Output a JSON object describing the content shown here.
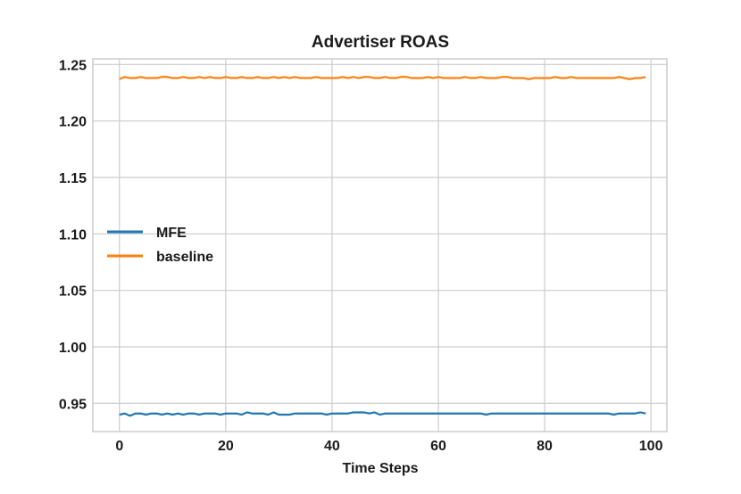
{
  "chart_data": {
    "type": "line",
    "title": "Advertiser ROAS",
    "xlabel": "Time Steps",
    "ylabel": "",
    "xlim": [
      -5,
      103
    ],
    "ylim": [
      0.925,
      1.255
    ],
    "xticks": [
      0,
      20,
      40,
      60,
      80,
      100
    ],
    "xtick_labels": [
      "0",
      "20",
      "40",
      "60",
      "80",
      "100"
    ],
    "yticks": [
      0.95,
      1.0,
      1.05,
      1.1,
      1.15,
      1.2,
      1.25
    ],
    "ytick_labels": [
      "0.95",
      "1.00",
      "1.05",
      "1.10",
      "1.15",
      "1.20",
      "1.25"
    ],
    "grid": true,
    "legend_position": "center-left",
    "x_start": 0,
    "series": [
      {
        "name": "MFE",
        "color": "#1f77b4",
        "values": [
          0.94,
          0.941,
          0.939,
          0.941,
          0.941,
          0.94,
          0.941,
          0.941,
          0.94,
          0.941,
          0.94,
          0.941,
          0.94,
          0.941,
          0.941,
          0.94,
          0.941,
          0.941,
          0.941,
          0.94,
          0.941,
          0.941,
          0.941,
          0.94,
          0.942,
          0.941,
          0.941,
          0.941,
          0.94,
          0.942,
          0.94,
          0.94,
          0.94,
          0.941,
          0.941,
          0.941,
          0.941,
          0.941,
          0.941,
          0.94,
          0.941,
          0.941,
          0.941,
          0.941,
          0.942,
          0.942,
          0.942,
          0.941,
          0.942,
          0.94,
          0.941,
          0.941,
          0.941,
          0.941,
          0.941,
          0.941,
          0.941,
          0.941,
          0.941,
          0.941,
          0.941,
          0.941,
          0.941,
          0.941,
          0.941,
          0.941,
          0.941,
          0.941,
          0.941,
          0.94,
          0.941,
          0.941,
          0.941,
          0.941,
          0.941,
          0.941,
          0.941,
          0.941,
          0.941,
          0.941,
          0.941,
          0.941,
          0.941,
          0.941,
          0.941,
          0.941,
          0.941,
          0.941,
          0.941,
          0.941,
          0.941,
          0.941,
          0.941,
          0.94,
          0.941,
          0.941,
          0.941,
          0.941,
          0.942,
          0.941
        ]
      },
      {
        "name": "baseline",
        "color": "#ff7f0e",
        "values": [
          1.237,
          1.239,
          1.238,
          1.238,
          1.239,
          1.238,
          1.238,
          1.238,
          1.239,
          1.239,
          1.238,
          1.238,
          1.239,
          1.238,
          1.238,
          1.239,
          1.238,
          1.239,
          1.238,
          1.238,
          1.239,
          1.238,
          1.238,
          1.239,
          1.238,
          1.238,
          1.239,
          1.238,
          1.238,
          1.239,
          1.238,
          1.239,
          1.238,
          1.239,
          1.238,
          1.238,
          1.238,
          1.239,
          1.238,
          1.238,
          1.238,
          1.238,
          1.239,
          1.238,
          1.239,
          1.238,
          1.239,
          1.239,
          1.238,
          1.238,
          1.239,
          1.238,
          1.238,
          1.239,
          1.239,
          1.238,
          1.238,
          1.238,
          1.239,
          1.238,
          1.239,
          1.238,
          1.238,
          1.238,
          1.238,
          1.239,
          1.238,
          1.238,
          1.239,
          1.238,
          1.238,
          1.238,
          1.239,
          1.239,
          1.238,
          1.238,
          1.238,
          1.237,
          1.238,
          1.238,
          1.238,
          1.238,
          1.239,
          1.238,
          1.238,
          1.239,
          1.238,
          1.238,
          1.238,
          1.238,
          1.238,
          1.238,
          1.238,
          1.238,
          1.239,
          1.238,
          1.237,
          1.238,
          1.238,
          1.239
        ]
      }
    ]
  }
}
